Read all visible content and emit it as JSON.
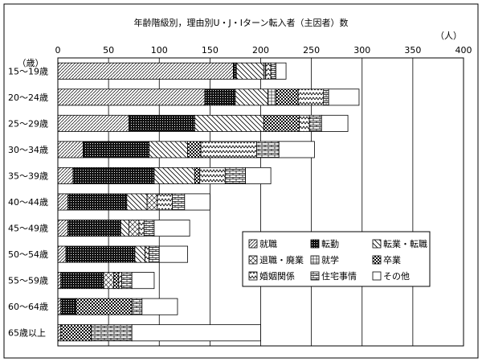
{
  "chart_data": {
    "type": "bar",
    "stacked": true,
    "orientation": "horizontal",
    "title": "年齢階級別，理由別U・J・Iターン転入者（主因者）数",
    "unit_label": "（人）",
    "ylabel": "（歳）",
    "xlim": [
      0,
      400
    ],
    "xticks": [
      0,
      50,
      100,
      150,
      200,
      250,
      300,
      350,
      400
    ],
    "grid": true,
    "legend_position": "lower-right inside plot",
    "categories": [
      "15～19歳",
      "20～24歳",
      "25～29歳",
      "30～34歳",
      "35～39歳",
      "40～44歳",
      "45～49歳",
      "50～54歳",
      "55～59歳",
      "60～64歳",
      "65歳以上"
    ],
    "series": [
      {
        "name": "就職",
        "values": [
          173,
          145,
          70,
          25,
          15,
          10,
          10,
          8,
          3,
          3,
          3
        ]
      },
      {
        "name": "転勤",
        "values": [
          3,
          30,
          65,
          65,
          80,
          58,
          52,
          68,
          42,
          15,
          0
        ]
      },
      {
        "name": "転業・転職",
        "values": [
          27,
          32,
          68,
          38,
          40,
          20,
          8,
          10,
          0,
          0,
          0
        ]
      },
      {
        "name": "退職・廃業",
        "values": [
          0,
          0,
          0,
          0,
          0,
          10,
          10,
          0,
          10,
          0,
          0
        ]
      },
      {
        "name": "就学",
        "values": [
          2,
          8,
          0,
          0,
          0,
          0,
          0,
          0,
          0,
          0,
          0
        ]
      },
      {
        "name": "卒業",
        "values": [
          0,
          22,
          35,
          13,
          5,
          0,
          0,
          0,
          5,
          55,
          30
        ]
      },
      {
        "name": "婚姻関係",
        "values": [
          5,
          25,
          10,
          55,
          25,
          15,
          5,
          4,
          3,
          0,
          0
        ]
      },
      {
        "name": "住宅事情",
        "values": [
          5,
          5,
          12,
          22,
          20,
          12,
          10,
          10,
          10,
          10,
          40
        ]
      },
      {
        "name": "その他",
        "values": [
          10,
          30,
          26,
          35,
          25,
          25,
          35,
          28,
          22,
          35,
          127
        ]
      }
    ]
  },
  "colors": {
    "background": "#ffffff",
    "ink": "#000000",
    "grid": "#000000"
  }
}
